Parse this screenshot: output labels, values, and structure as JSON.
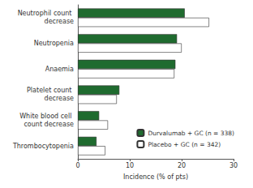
{
  "chart_data": {
    "type": "bar",
    "orientation": "horizontal",
    "x_label": "Incidence (% of pts)",
    "categories": [
      "Neutrophil count decrease",
      "Neutropenia",
      "Anaemia",
      "Platelet count decrease",
      "White blood cell count decrease",
      "Thrombocytopenia"
    ],
    "series": [
      {
        "name": "Durvalumab + GC (n = 338)",
        "color": "#1f6b2f",
        "values": [
          20.6,
          19.1,
          18.8,
          8.0,
          4.1,
          3.6
        ]
      },
      {
        "name": "Placebo + GC (n = 342)",
        "color": "#ffffff",
        "values": [
          25.3,
          20.0,
          18.6,
          7.5,
          5.8,
          5.3
        ]
      }
    ],
    "xlim": [
      0,
      30
    ],
    "xticks": [
      0,
      10,
      20,
      30
    ],
    "grid": false,
    "legend": "lower right"
  }
}
